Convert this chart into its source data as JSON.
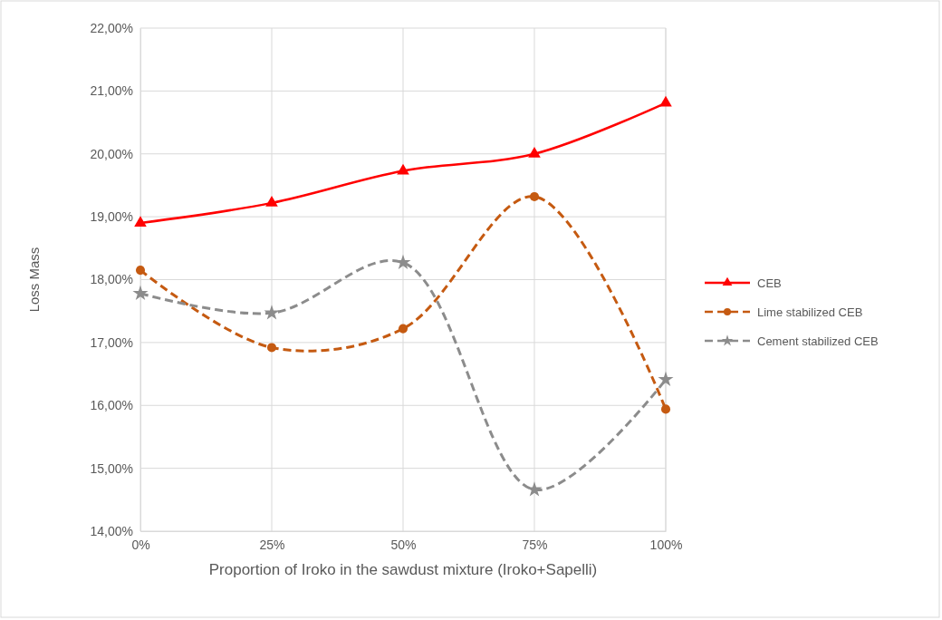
{
  "chart_data": {
    "type": "line",
    "xlabel": "Proportion of Iroko in the sawdust mixture (Iroko+Sapelli)",
    "ylabel": "Loss Mass",
    "categories": [
      "0%",
      "25%",
      "50%",
      "75%",
      "100%"
    ],
    "series": [
      {
        "name": "CEB",
        "color": "#ff0000",
        "values": [
          18.9,
          19.22,
          19.73,
          20.0,
          20.81
        ],
        "marker": "triangle",
        "line_style": "solid"
      },
      {
        "name": "Lime stabilized CEB",
        "color": "#c55a11",
        "values": [
          18.15,
          16.92,
          17.22,
          19.32,
          15.94
        ],
        "marker": "circle",
        "line_style": "dashed"
      },
      {
        "name": "Cement stabilized CEB",
        "color": "#8c8c8c",
        "values": [
          17.78,
          17.47,
          18.27,
          14.66,
          16.41
        ],
        "marker": "star",
        "line_style": "dashed"
      }
    ],
    "ylim": [
      14,
      22
    ],
    "yticks": [
      {
        "value": 14,
        "label": "14,00%"
      },
      {
        "value": 15,
        "label": "15,00%"
      },
      {
        "value": 16,
        "label": "16,00%"
      },
      {
        "value": 17,
        "label": "17,00%"
      },
      {
        "value": 18,
        "label": "18,00%"
      },
      {
        "value": 19,
        "label": "19,00%"
      },
      {
        "value": 20,
        "label": "20,00%"
      },
      {
        "value": 21,
        "label": "21,00%"
      },
      {
        "value": 22,
        "label": "22,00%"
      }
    ],
    "grid": true,
    "legend": "right"
  }
}
